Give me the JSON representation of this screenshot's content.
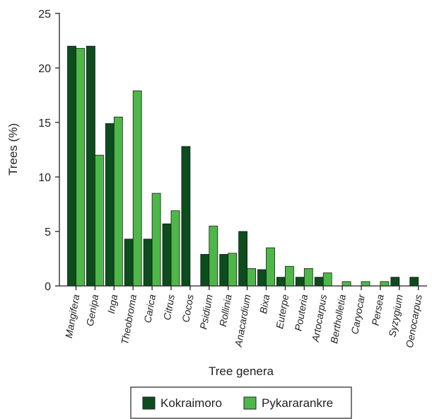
{
  "chart_data": {
    "type": "bar",
    "xlabel": "Tree genera",
    "ylabel": "Trees (%)",
    "ylim": [
      0,
      25
    ],
    "yticks": [
      0,
      5,
      10,
      15,
      20,
      25
    ],
    "categories": [
      "Mangifera",
      "Genipa",
      "Inga",
      "Theobroma",
      "Carica",
      "Citrus",
      "Cocos",
      "Psidium",
      "Rollinia",
      "Anacardium",
      "Bixa",
      "Euterpe",
      "Pouteria",
      "Artocarpus",
      "Bertholletia",
      "Caryocar",
      "Persea",
      "Syzygium",
      "Oenocarpus"
    ],
    "series": [
      {
        "name": "Kokraimoro",
        "color": "#0b4d1c",
        "values": [
          22.0,
          22.0,
          14.9,
          4.3,
          4.3,
          5.7,
          12.8,
          2.9,
          2.9,
          5.0,
          1.5,
          0.8,
          0.8,
          0.8,
          0,
          0,
          0,
          0.8,
          0.8
        ]
      },
      {
        "name": "Pykararankre",
        "color": "#4db848",
        "values": [
          21.8,
          12.0,
          15.5,
          17.9,
          8.5,
          6.9,
          0,
          5.5,
          3.0,
          1.6,
          3.5,
          1.8,
          1.6,
          1.2,
          0.4,
          0.4,
          0.4,
          0,
          0
        ]
      }
    ],
    "grid": false,
    "legend": "bottom"
  }
}
